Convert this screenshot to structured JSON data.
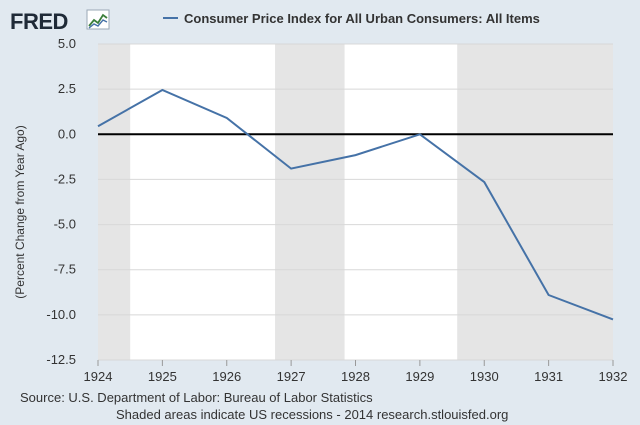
{
  "header": {
    "logo_text": "FRED",
    "logo_icon": "fred-chart-icon"
  },
  "chart_data": {
    "type": "line",
    "title": "",
    "ylabel": "(Percent Change from Year Ago)",
    "xlabel": "",
    "x_ticks": [
      "1924",
      "1925",
      "1926",
      "1927",
      "1928",
      "1929",
      "1930",
      "1931",
      "1932"
    ],
    "y_ticks": [
      "5.0",
      "2.5",
      "0.0",
      "-2.5",
      "-5.0",
      "-7.5",
      "-10.0",
      "-12.5"
    ],
    "xlim": [
      1924,
      1932
    ],
    "ylim": [
      -12.5,
      5.0
    ],
    "grid": true,
    "legend_position": "top",
    "series": [
      {
        "name": "Consumer Price Index for All Urban Consumers: All Items",
        "color": "#4572a7",
        "x": [
          1924,
          1925,
          1926,
          1927,
          1928,
          1929,
          1930,
          1931,
          1932
        ],
        "values": [
          0.45,
          2.45,
          0.9,
          -1.9,
          -1.15,
          0.0,
          -2.65,
          -8.9,
          -10.25
        ]
      }
    ],
    "recessions": [
      {
        "start": 1924.0,
        "end": 1924.5
      },
      {
        "start": 1926.75,
        "end": 1927.83
      },
      {
        "start": 1929.58,
        "end": 1932.0
      }
    ],
    "zero_line": 0
  },
  "colors": {
    "page_background": "#e1e9f0",
    "plot_background": "#ffffff",
    "recession_shading": "#e5e5e5",
    "gridline": "#d8d8d8",
    "zero_line": "#000000"
  },
  "footer": {
    "source": "Source: U.S. Department of Labor: Bureau of Labor Statistics",
    "note": "Shaded areas indicate US recessions - 2014 research.stlouisfed.org"
  }
}
